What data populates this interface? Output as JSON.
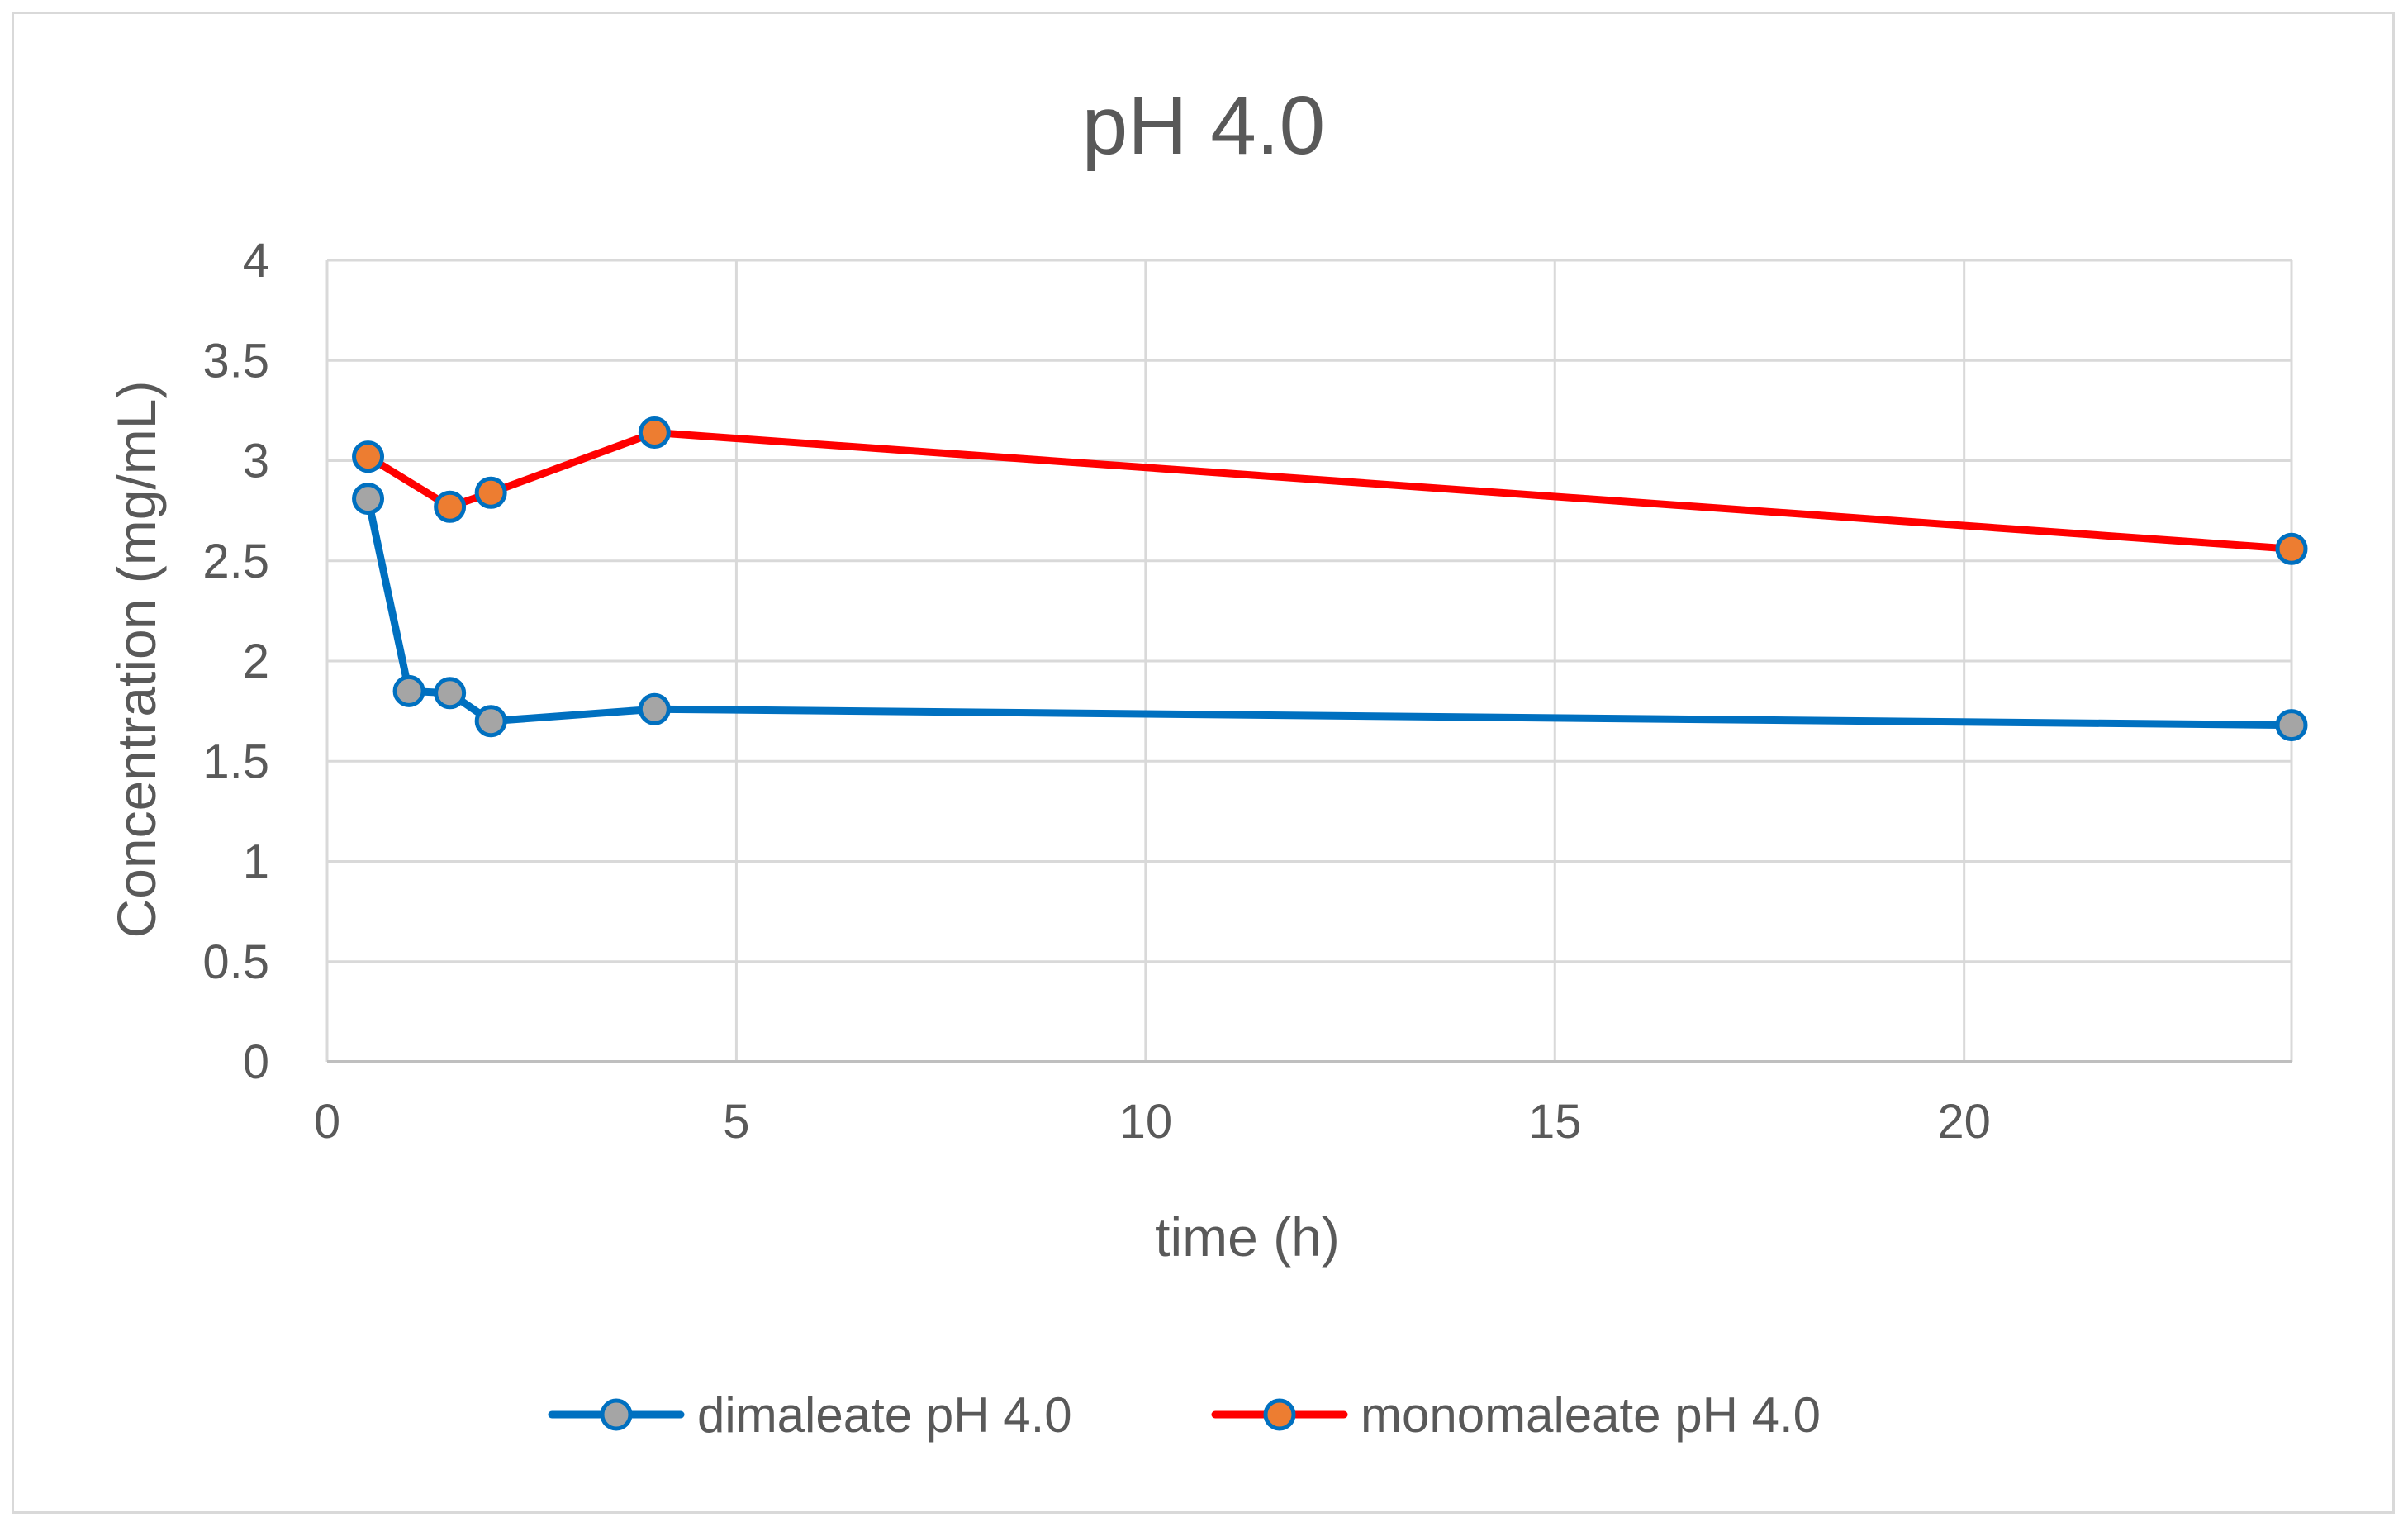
{
  "chart_data": {
    "type": "line",
    "title": "pH 4.0",
    "xlabel": "time (h)",
    "ylabel": "Concentration (mg/mL)",
    "xlim": [
      0,
      24
    ],
    "ylim": [
      0,
      4
    ],
    "xticks": [
      0,
      5,
      10,
      15,
      20
    ],
    "yticks": [
      0,
      0.5,
      1,
      1.5,
      2,
      2.5,
      3,
      3.5,
      4
    ],
    "xtick_labels": [
      "0",
      "5",
      "10",
      "15",
      "20"
    ],
    "ytick_labels": [
      "0",
      "0.5",
      "1",
      "1.5",
      "2",
      "2.5",
      "3",
      "3.5",
      "4"
    ],
    "grid": true,
    "legend_position": "bottom",
    "series": [
      {
        "name": "dimaleate pH 4.0",
        "line_color": "#0070c0",
        "marker_color": "#a5a5a5",
        "x": [
          0.5,
          1,
          1.5,
          2,
          4,
          24
        ],
        "y": [
          2.81,
          1.85,
          1.84,
          1.7,
          1.76,
          1.68
        ]
      },
      {
        "name": "monomaleate pH 4.0",
        "line_color": "#ff0000",
        "marker_color": "#ed7d31",
        "x": [
          0.5,
          1.5,
          2,
          4,
          24
        ],
        "y": [
          3.02,
          2.77,
          2.84,
          3.14,
          2.56
        ]
      }
    ]
  }
}
